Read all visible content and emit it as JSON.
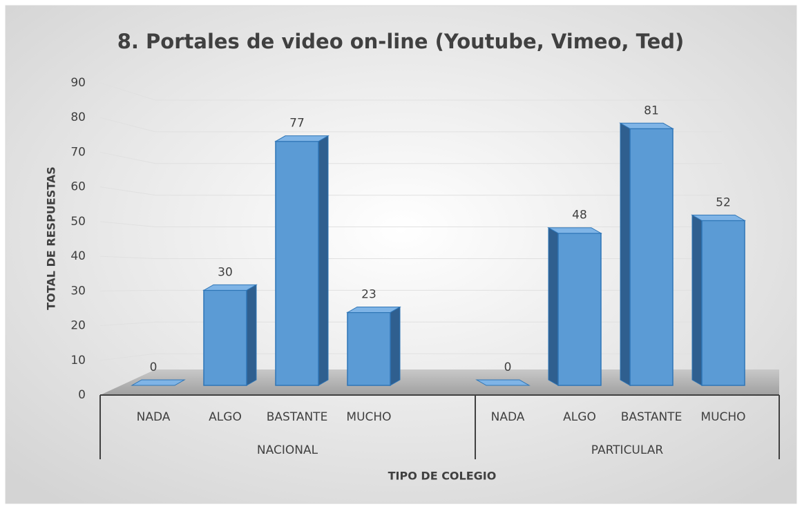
{
  "chart_data": {
    "type": "bar",
    "title": "8. Portales de video on-line (Youtube, Vimeo, Ted)",
    "x_label": "TIPO DE COLEGIO",
    "y_label": "TOTAL DE RESPUESTAS",
    "groups": [
      {
        "name": "NACIONAL",
        "categories": [
          "NADA",
          "ALGO",
          "BASTANTE",
          "MUCHO"
        ],
        "values": [
          0,
          30,
          77,
          23
        ]
      },
      {
        "name": "PARTICULAR",
        "categories": [
          "NADA",
          "ALGO",
          "BASTANTE",
          "MUCHO"
        ],
        "values": [
          0,
          48,
          81,
          52
        ]
      }
    ],
    "color": "#5b9bd5",
    "ylim": [
      0,
      90
    ],
    "yticks": [
      0,
      10,
      20,
      30,
      40,
      50,
      60,
      70,
      80,
      90
    ],
    "grid": true
  }
}
